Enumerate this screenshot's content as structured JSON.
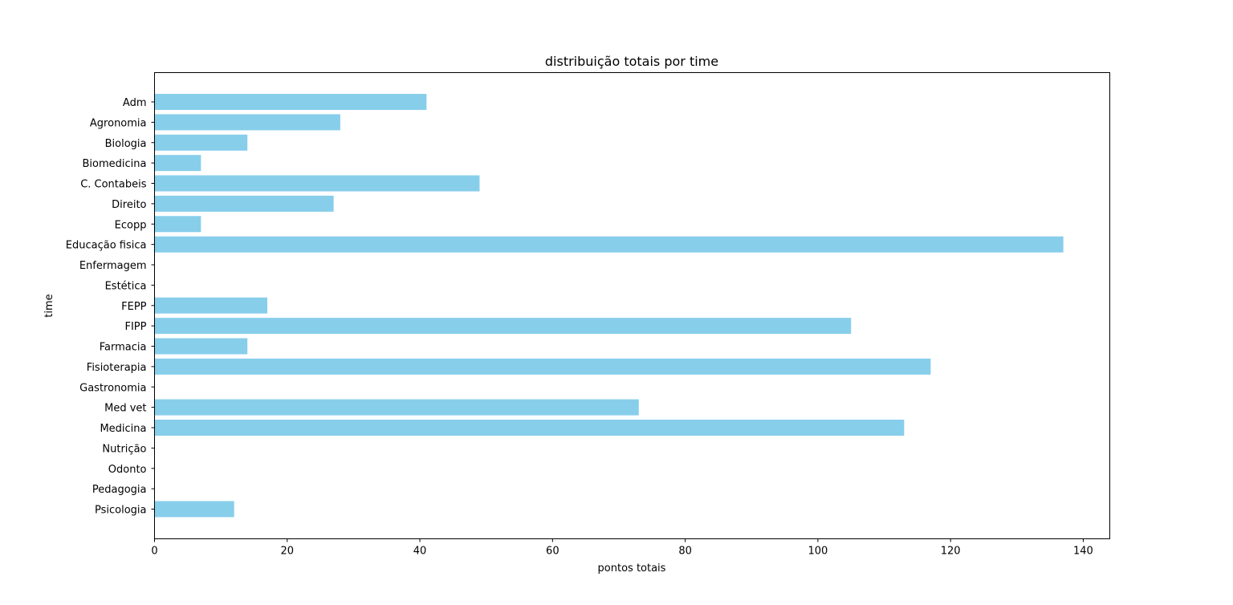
{
  "chart_data": {
    "type": "bar",
    "orientation": "horizontal",
    "title": "distribuição totais por time",
    "xlabel": "pontos totais",
    "ylabel": "time",
    "xlim": [
      0,
      144
    ],
    "xticks": [
      0,
      20,
      40,
      60,
      80,
      100,
      120,
      140
    ],
    "grid": false,
    "bar_color": "#87ceeb",
    "categories": [
      "Adm",
      "Agronomia",
      "Biologia",
      "Biomedicina",
      "C. Contabeis",
      "Direito",
      "Ecopp",
      "Educação fisica",
      "Enfermagem",
      "Estética",
      "FEPP",
      "FIPP",
      "Farmacia",
      "Fisioterapia",
      "Gastronomia",
      "Med vet",
      "Medicina",
      "Nutrição",
      "Odonto",
      "Pedagogia",
      "Psicologia"
    ],
    "values": [
      41,
      28,
      14,
      7,
      49,
      27,
      7,
      137,
      0,
      0,
      17,
      105,
      14,
      117,
      0,
      73,
      113,
      0,
      0,
      0,
      12
    ]
  }
}
